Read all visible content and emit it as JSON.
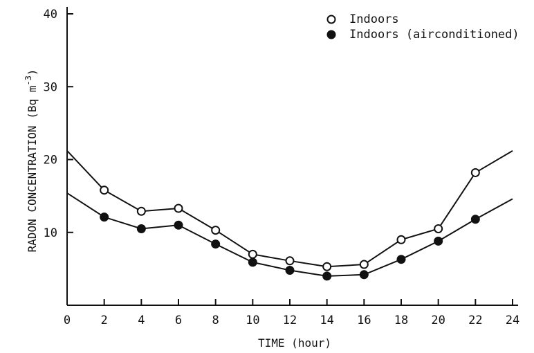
{
  "chart_data": {
    "type": "line",
    "xlabel": "TIME (hour)",
    "ylabel": "RADON CONCENTRATION (Bq m",
    "ylabel_superscript": "-3",
    "ylabel_suffix": ")",
    "xlim": [
      0,
      24
    ],
    "ylim": [
      0,
      40
    ],
    "x_ticks": [
      0,
      2,
      4,
      6,
      8,
      10,
      12,
      14,
      16,
      18,
      20,
      22,
      24
    ],
    "y_ticks": [
      10,
      20,
      30,
      40
    ],
    "grid": false,
    "legend_position": "top-right",
    "series": [
      {
        "name": "Indoors",
        "marker": "open-circle",
        "line": {
          "x": [
            0,
            2,
            4,
            6,
            8,
            10,
            12,
            14,
            16,
            18,
            20,
            22,
            24
          ],
          "y": [
            21.2,
            15.8,
            12.9,
            13.3,
            10.3,
            7.0,
            6.1,
            5.3,
            5.6,
            9.0,
            10.5,
            18.2,
            21.2
          ]
        },
        "points": {
          "x": [
            2,
            4,
            6,
            8,
            10,
            12,
            14,
            16,
            18,
            20,
            22
          ],
          "y": [
            15.8,
            12.9,
            13.3,
            10.3,
            7.0,
            6.1,
            5.3,
            5.6,
            9.0,
            10.5,
            18.2
          ]
        }
      },
      {
        "name": "Indoors (airconditioned)",
        "marker": "filled-circle",
        "line": {
          "x": [
            0,
            2,
            4,
            6,
            8,
            10,
            12,
            14,
            16,
            18,
            20,
            22,
            24
          ],
          "y": [
            15.4,
            12.1,
            10.5,
            11.0,
            8.4,
            5.9,
            4.8,
            4.0,
            4.2,
            6.3,
            8.8,
            11.8,
            14.6
          ]
        },
        "points": {
          "x": [
            2,
            4,
            6,
            8,
            10,
            12,
            14,
            16,
            18,
            20,
            22
          ],
          "y": [
            12.1,
            10.5,
            11.0,
            8.4,
            5.9,
            4.8,
            4.0,
            4.2,
            6.3,
            8.8,
            11.8
          ]
        }
      }
    ]
  }
}
